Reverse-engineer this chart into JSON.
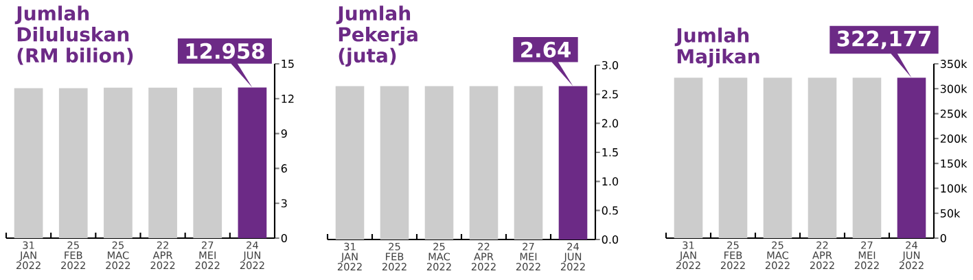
{
  "chart_data": [
    {
      "type": "bar",
      "title": "Jumlah Diluluskan (RM bilion)",
      "categories": [
        "31 JAN 2022",
        "25 FEB 2022",
        "25 MAC 2022",
        "22 APR 2022",
        "27 MEI 2022",
        "24 JUN 2022"
      ],
      "values": [
        12.9,
        12.9,
        12.95,
        12.95,
        12.95,
        12.958
      ],
      "colors": [
        "#cccccc",
        "#cccccc",
        "#cccccc",
        "#cccccc",
        "#cccccc",
        "#6c2a86"
      ],
      "value_labels": [
        null,
        null,
        null,
        null,
        null,
        "12.958"
      ],
      "ylim": [
        0,
        15
      ],
      "yticks": [
        0,
        3,
        6,
        9,
        12,
        15
      ]
    },
    {
      "type": "bar",
      "title": "Jumlah Pekerja (juta)",
      "categories": [
        "31 JAN 2022",
        "25 FEB 2022",
        "25 MAC 2022",
        "22 APR 2022",
        "27 MEI 2022",
        "24 JUN 2022"
      ],
      "values": [
        2.64,
        2.64,
        2.64,
        2.64,
        2.64,
        2.64
      ],
      "colors": [
        "#cccccc",
        "#cccccc",
        "#cccccc",
        "#cccccc",
        "#cccccc",
        "#6c2a86"
      ],
      "value_labels": [
        null,
        null,
        null,
        null,
        null,
        "2.64"
      ],
      "ylim": [
        0,
        3
      ],
      "yticks": [
        {
          "value": 0,
          "label": "0.0"
        },
        0.5,
        {
          "value": 1,
          "label": "1.0"
        },
        1.5,
        {
          "value": 2,
          "label": "2.0"
        },
        2.5,
        {
          "value": 3,
          "label": "3.0"
        }
      ]
    },
    {
      "type": "bar",
      "title": "Jumlah Majikan",
      "categories": [
        "31 JAN 2022",
        "25 FEB 2022",
        "25 MAC 2022",
        "22 APR 2022",
        "27 MEI 2022",
        "24 JUN 2022"
      ],
      "values": [
        322000,
        322000,
        322000,
        322000,
        322000,
        322177
      ],
      "colors": [
        "#cccccc",
        "#cccccc",
        "#cccccc",
        "#cccccc",
        "#cccccc",
        "#6c2a86"
      ],
      "value_labels": [
        null,
        null,
        null,
        null,
        null,
        "322,177"
      ],
      "ylim": [
        0,
        350000
      ],
      "yticks": [
        0,
        {
          "value": 50000,
          "label": "50k"
        },
        {
          "value": 100000,
          "label": "100k"
        },
        {
          "value": 150000,
          "label": "150k"
        },
        {
          "value": 200000,
          "label": "200k"
        },
        {
          "value": 250000,
          "label": "250k"
        },
        {
          "value": 300000,
          "label": "300k"
        },
        {
          "value": 350000,
          "label": "350k"
        }
      ]
    }
  ]
}
